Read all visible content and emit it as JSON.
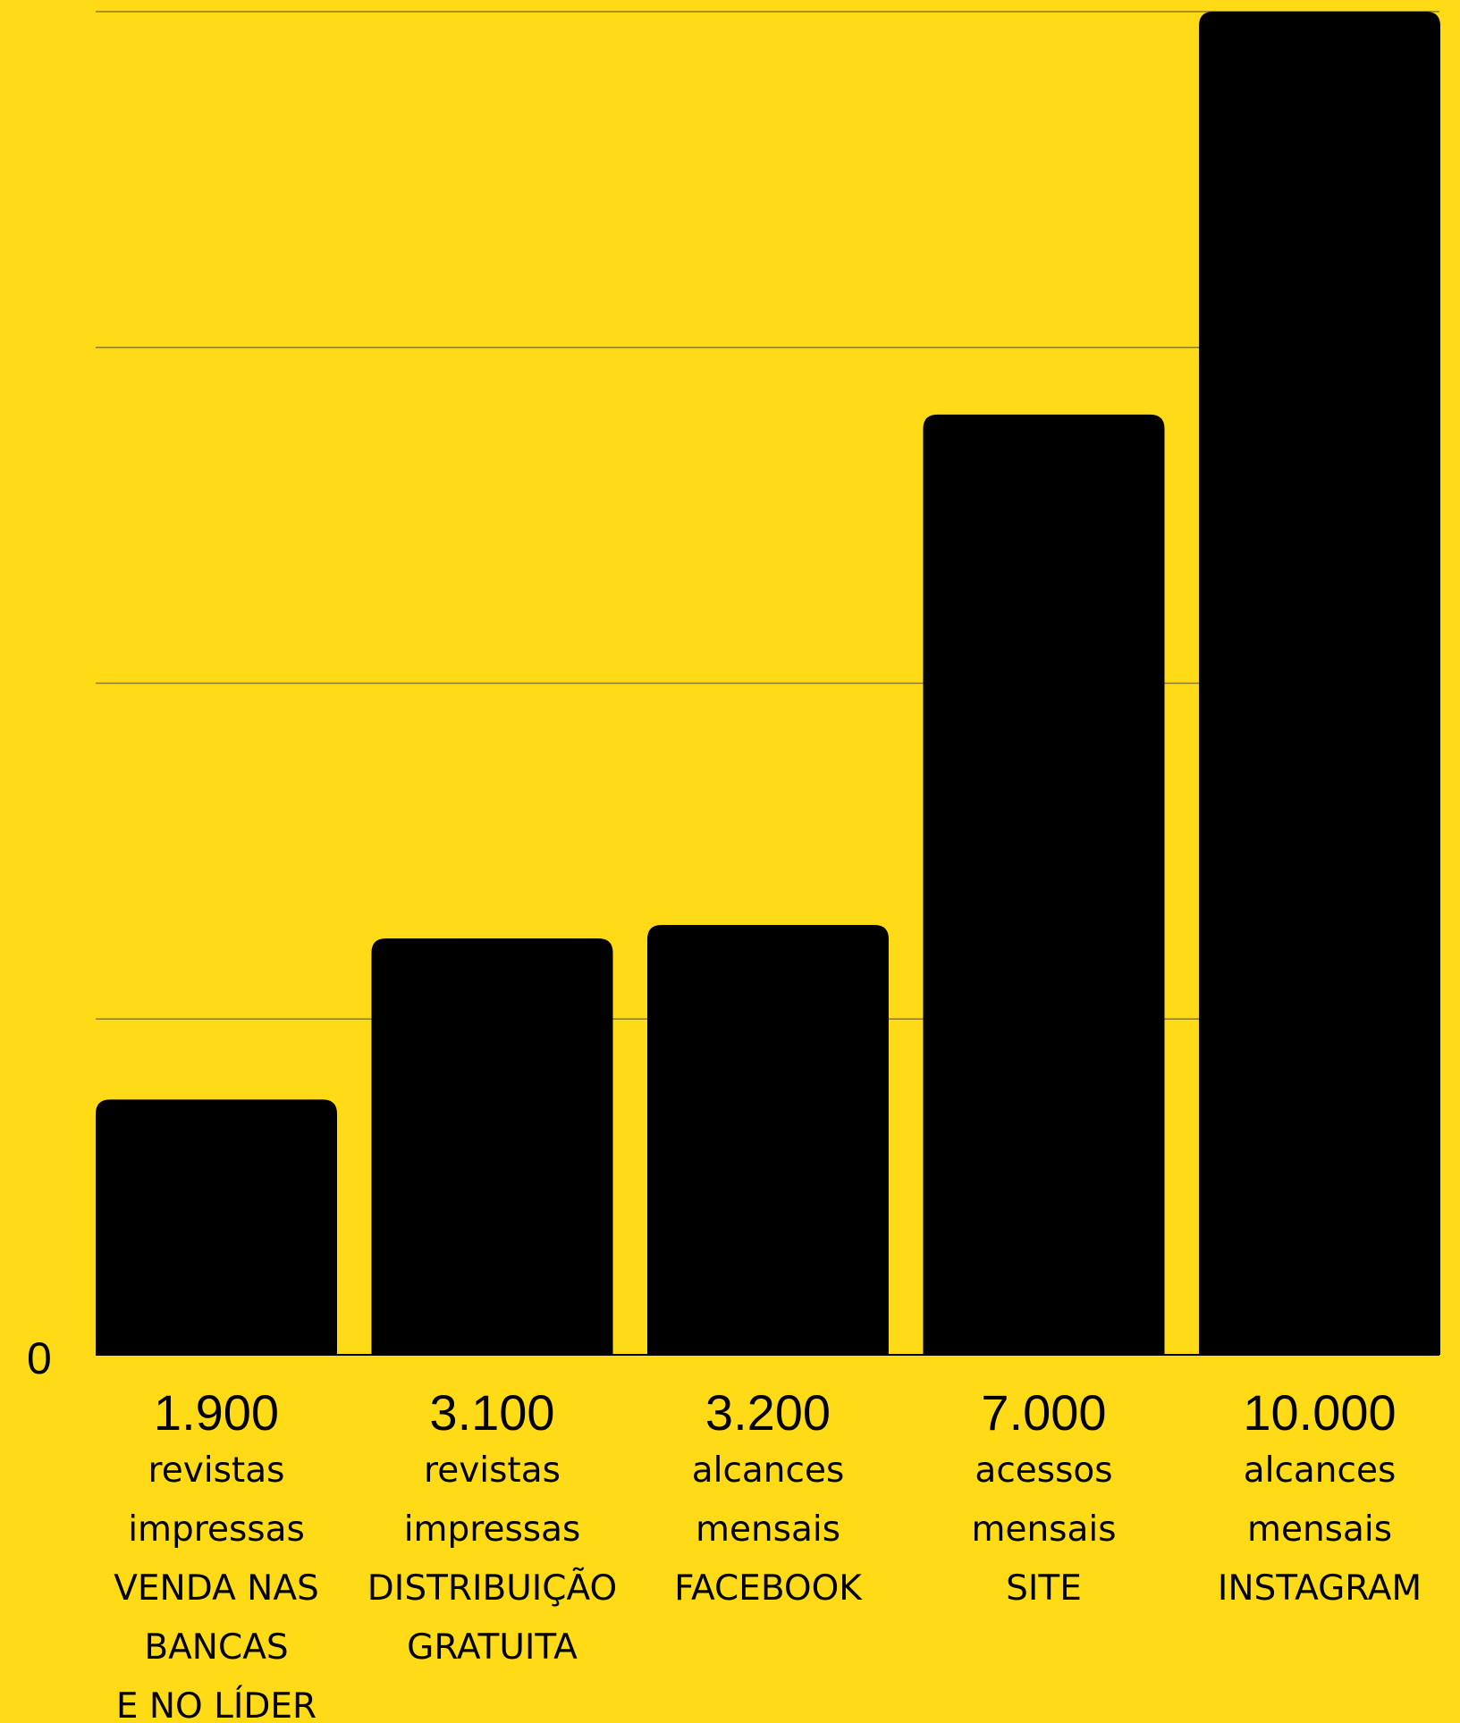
{
  "colors": {
    "background": "#FFDB17",
    "bar": "#000000",
    "gridline": "#8A7A2A"
  },
  "chart_data": {
    "type": "bar",
    "title": "",
    "xlabel": "",
    "ylabel": "",
    "ylim": [
      0,
      10000
    ],
    "grid": true,
    "legend": "none",
    "y_tick_labels": [
      "0"
    ],
    "categories": [
      [
        "VENDA NAS",
        "BANCAS",
        "E NO LÍDER"
      ],
      [
        "DISTRIBUIÇÃO",
        "GRATUITA"
      ],
      [
        "FACEBOOK"
      ],
      [
        "SITE"
      ],
      [
        "INSTAGRAM"
      ]
    ],
    "values": [
      1900,
      3100,
      3200,
      7000,
      10000
    ],
    "value_labels": [
      "1.900",
      "3.100",
      "3.200",
      "7.000",
      "10.000"
    ],
    "units": [
      [
        "revistas",
        "impressas"
      ],
      [
        "revistas",
        "impressas"
      ],
      [
        "alcances",
        "mensais"
      ],
      [
        "acessos",
        "mensais"
      ],
      [
        "alcances",
        "mensais"
      ]
    ]
  }
}
